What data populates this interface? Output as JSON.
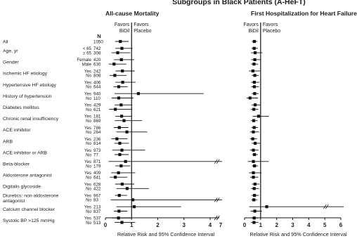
{
  "figure": {
    "title": "Subgroups in Black Patients (A-HeFT)",
    "n_header": "N"
  },
  "row_labels": [
    {
      "group": "All",
      "subs": [
        ""
      ],
      "n": [
        "1050"
      ]
    },
    {
      "group": "Age, yr",
      "subs": [
        "< 65",
        "≥ 65"
      ],
      "n": [
        "742",
        "308"
      ]
    },
    {
      "group": "Gender",
      "subs": [
        "Female",
        "Male"
      ],
      "n": [
        "420",
        "630"
      ]
    },
    {
      "group": "Ischemic HF etiology",
      "subs": [
        "Yes",
        "No"
      ],
      "n": [
        "242",
        "808"
      ]
    },
    {
      "group": "Hypertensive HF etiology",
      "subs": [
        "Yes",
        "No"
      ],
      "n": [
        "406",
        "644"
      ]
    },
    {
      "group": "History of hypertension",
      "subs": [
        "Yes",
        "No"
      ],
      "n": [
        "940",
        "110"
      ]
    },
    {
      "group": "Diabetes mellitus",
      "subs": [
        "Yes",
        "No"
      ],
      "n": [
        "429",
        "621"
      ]
    },
    {
      "group": "Chronic renal insufficiency",
      "subs": [
        "Yes",
        "No"
      ],
      "n": [
        "181",
        "869"
      ]
    },
    {
      "group": "ACE inhibitor",
      "subs": [
        "Yes",
        "No"
      ],
      "n": [
        "786",
        "264"
      ]
    },
    {
      "group": "ARB",
      "subs": [
        "Yes",
        "No"
      ],
      "n": [
        "236",
        "814"
      ]
    },
    {
      "group": "ACE inhibitor or ARB",
      "subs": [
        "Yes",
        "No"
      ],
      "n": [
        "973",
        "77"
      ]
    },
    {
      "group": "Beta-blocker",
      "subs": [
        "Yes",
        "No"
      ],
      "n": [
        "871",
        "179"
      ]
    },
    {
      "group": "Aldosterone antagonist",
      "subs": [
        "Yes",
        "No"
      ],
      "n": [
        "409",
        "641"
      ]
    },
    {
      "group": "Digitalis glycoside",
      "subs": [
        "Yes",
        "No"
      ],
      "n": [
        "628",
        "422"
      ]
    },
    {
      "group": "Diuretics: non-aldosterone antagonist",
      "subs": [
        "Yes",
        "No"
      ],
      "n": [
        "967",
        "83"
      ]
    },
    {
      "group": "Calcium channel blocker",
      "subs": [
        "Yes",
        "No"
      ],
      "n": [
        "213",
        "837"
      ]
    },
    {
      "group": "Systolic BP >125 mmHg",
      "subs": [
        "Yes",
        "No"
      ],
      "n": [
        "537",
        "513"
      ]
    }
  ],
  "chart_data": [
    {
      "type": "forest",
      "title": "All-cause Mortality",
      "xlabel": "Relative Risk and 95% Confidence Interval",
      "xticks": [
        "0",
        "1",
        "2",
        "3",
        "4",
        "7"
      ],
      "xlim": [
        0,
        4.3
      ],
      "axis_break": "4–7",
      "reference_line": 1,
      "favors_left": [
        "Favors",
        "BiDil"
      ],
      "favors_right": [
        "Favors",
        "Placebo"
      ],
      "rows": [
        {
          "est": 0.57,
          "lo": 0.37,
          "hi": 0.89
        },
        {
          "est": 0.63,
          "lo": 0.38,
          "hi": 1.04
        },
        {
          "est": 0.47,
          "lo": 0.23,
          "hi": 0.95
        },
        {
          "est": 0.61,
          "lo": 0.33,
          "hi": 1.1
        },
        {
          "est": 0.33,
          "lo": 0.13,
          "hi": 0.8
        },
        {
          "est": 0.65,
          "lo": 0.39,
          "hi": 1.12
        },
        {
          "est": 0.36,
          "lo": 0.16,
          "hi": 0.81
        },
        {
          "est": 0.66,
          "lo": 0.38,
          "hi": 1.15
        },
        {
          "est": 0.51,
          "lo": 0.31,
          "hi": 0.85
        },
        {
          "est": 1.26,
          "lo": 0.35,
          "hi": 3.75
        },
        {
          "est": 0.51,
          "lo": 0.24,
          "hi": 1.07
        },
        {
          "est": 0.6,
          "lo": 0.35,
          "hi": 1.03
        },
        {
          "est": 0.38,
          "lo": 0.14,
          "hi": 1.03
        },
        {
          "est": 0.62,
          "lo": 0.38,
          "hi": 1.01
        },
        {
          "est": 0.71,
          "lo": 0.36,
          "hi": 1.4
        },
        {
          "est": 0.53,
          "lo": 0.32,
          "hi": 0.88
        },
        {
          "est": 0.82,
          "lo": 0.42,
          "hi": 1.6
        },
        {
          "est": 0.44,
          "lo": 0.23,
          "hi": 0.84
        },
        {
          "est": 0.55,
          "lo": 0.34,
          "hi": 0.9
        },
        {
          "est": 0.63,
          "lo": 0.26,
          "hi": 1.52
        },
        {
          "est": 0.55,
          "lo": 0.35,
          "hi": 0.89
        },
        {
          "est": 0.77,
          "lo": 0.12,
          "hi": 4.5
        },
        {
          "est": 0.6,
          "lo": 0.38,
          "hi": 0.95
        },
        {
          "est": 0.5,
          "lo": 0.22,
          "hi": 1.14
        },
        {
          "est": 0.38,
          "lo": 0.17,
          "hi": 0.84
        },
        {
          "est": 0.64,
          "lo": 0.37,
          "hi": 1.1
        },
        {
          "est": 0.83,
          "lo": 0.42,
          "hi": 1.66
        },
        {
          "est": 0.53,
          "lo": 0.36,
          "hi": 0.83
        },
        {
          "est": 1.05,
          "lo": 0.2,
          "hi": 4.5
        },
        {
          "est": 1.1,
          "lo": 0.42,
          "hi": 2.89
        },
        {
          "est": 0.52,
          "lo": 0.32,
          "hi": 0.84
        },
        {
          "est": 0.5,
          "lo": 0.25,
          "hi": 1.0
        },
        {
          "est": 0.63,
          "lo": 0.35,
          "hi": 1.14
        }
      ]
    },
    {
      "type": "forest",
      "title": "First Hospitalization for Heart Failure",
      "xlabel": "Relative Risk and 95% Confidence Interval",
      "xticks": [
        "0",
        "1",
        "2",
        "3",
        "4",
        "5",
        "6"
      ],
      "xlim": [
        0,
        6.2
      ],
      "axis_break": "",
      "reference_line": 1,
      "favors_left": [
        "Favors",
        "BiDil"
      ],
      "favors_right": [
        "Favors",
        "Placebo"
      ],
      "rows": [
        {
          "est": 0.61,
          "lo": 0.46,
          "hi": 0.8
        },
        {
          "est": 0.6,
          "lo": 0.43,
          "hi": 0.83
        },
        {
          "est": 0.66,
          "lo": 0.4,
          "hi": 1.11
        },
        {
          "est": 0.64,
          "lo": 0.41,
          "hi": 1.01
        },
        {
          "est": 0.59,
          "lo": 0.41,
          "hi": 0.85
        },
        {
          "est": 0.52,
          "lo": 0.28,
          "hi": 0.96
        },
        {
          "est": 0.64,
          "lo": 0.46,
          "hi": 0.89
        },
        {
          "est": 0.61,
          "lo": 0.41,
          "hi": 0.92
        },
        {
          "est": 0.61,
          "lo": 0.41,
          "hi": 0.9
        },
        {
          "est": 0.63,
          "lo": 0.45,
          "hi": 0.88
        },
        {
          "est": 0.34,
          "lo": 0.14,
          "hi": 0.84
        },
        {
          "est": 0.66,
          "lo": 0.44,
          "hi": 0.99
        },
        {
          "est": 0.58,
          "lo": 0.39,
          "hi": 0.86
        },
        {
          "est": 0.87,
          "lo": 0.5,
          "hi": 1.52
        },
        {
          "est": 0.57,
          "lo": 0.4,
          "hi": 0.81
        },
        {
          "est": 0.6,
          "lo": 0.43,
          "hi": 0.84
        },
        {
          "est": 0.55,
          "lo": 0.34,
          "hi": 0.9
        },
        {
          "est": 0.51,
          "lo": 0.34,
          "hi": 0.77
        },
        {
          "est": 0.66,
          "lo": 0.45,
          "hi": 0.97
        },
        {
          "est": 0.55,
          "lo": 0.34,
          "hi": 0.88
        },
        {
          "est": 0.62,
          "lo": 0.47,
          "hi": 0.83
        },
        {
          "est": 0.55,
          "lo": 0.2,
          "hi": 1.5
        },
        {
          "est": 0.62,
          "lo": 0.46,
          "hi": 0.84
        },
        {
          "est": 0.55,
          "lo": 0.28,
          "hi": 1.06
        },
        {
          "est": 0.55,
          "lo": 0.35,
          "hi": 0.86
        },
        {
          "est": 0.65,
          "lo": 0.46,
          "hi": 0.92
        },
        {
          "est": 0.6,
          "lo": 0.4,
          "hi": 0.9
        },
        {
          "est": 0.62,
          "lo": 0.43,
          "hi": 0.89
        },
        {
          "est": 0.58,
          "lo": 0.43,
          "hi": 0.78
        },
        {
          "est": 1.38,
          "lo": 0.29,
          "hi": 6.0
        },
        {
          "est": 0.64,
          "lo": 0.38,
          "hi": 1.08
        },
        {
          "est": 0.6,
          "lo": 0.43,
          "hi": 0.84
        },
        {
          "est": 0.59,
          "lo": 0.4,
          "hi": 0.87
        }
      ]
    }
  ]
}
